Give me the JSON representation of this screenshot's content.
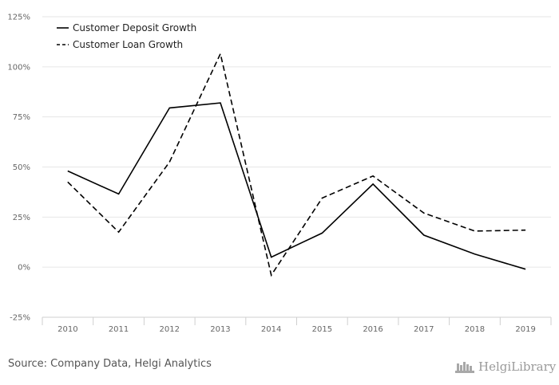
{
  "chart_data": {
    "type": "line",
    "x": [
      "2010",
      "2011",
      "2012",
      "2013",
      "2014",
      "2015",
      "2016",
      "2017",
      "2018",
      "2019"
    ],
    "series": [
      {
        "name": "Customer Deposit Growth",
        "values": [
          48.0,
          36.5,
          79.5,
          82.0,
          5.0,
          17.0,
          41.5,
          16.0,
          6.5,
          -1.0
        ],
        "style": "solid"
      },
      {
        "name": "Customer Loan Growth",
        "values": [
          42.5,
          17.5,
          52.5,
          106.5,
          -4.0,
          34.5,
          45.5,
          27.0,
          18.0,
          18.5
        ],
        "style": "dashed"
      }
    ],
    "y_ticks": [
      "125%",
      "100%",
      "75%",
      "50%",
      "25%",
      "0%",
      "-25%"
    ],
    "y_tick_values": [
      125,
      100,
      75,
      50,
      25,
      0,
      -25
    ],
    "ylim": [
      -25,
      125
    ],
    "legend_position": "top-left",
    "grid": true,
    "line_color": "#000000"
  },
  "footer": {
    "source": "Source: Company Data, Helgi Analytics",
    "logo_text": "HelgiLibrary"
  }
}
